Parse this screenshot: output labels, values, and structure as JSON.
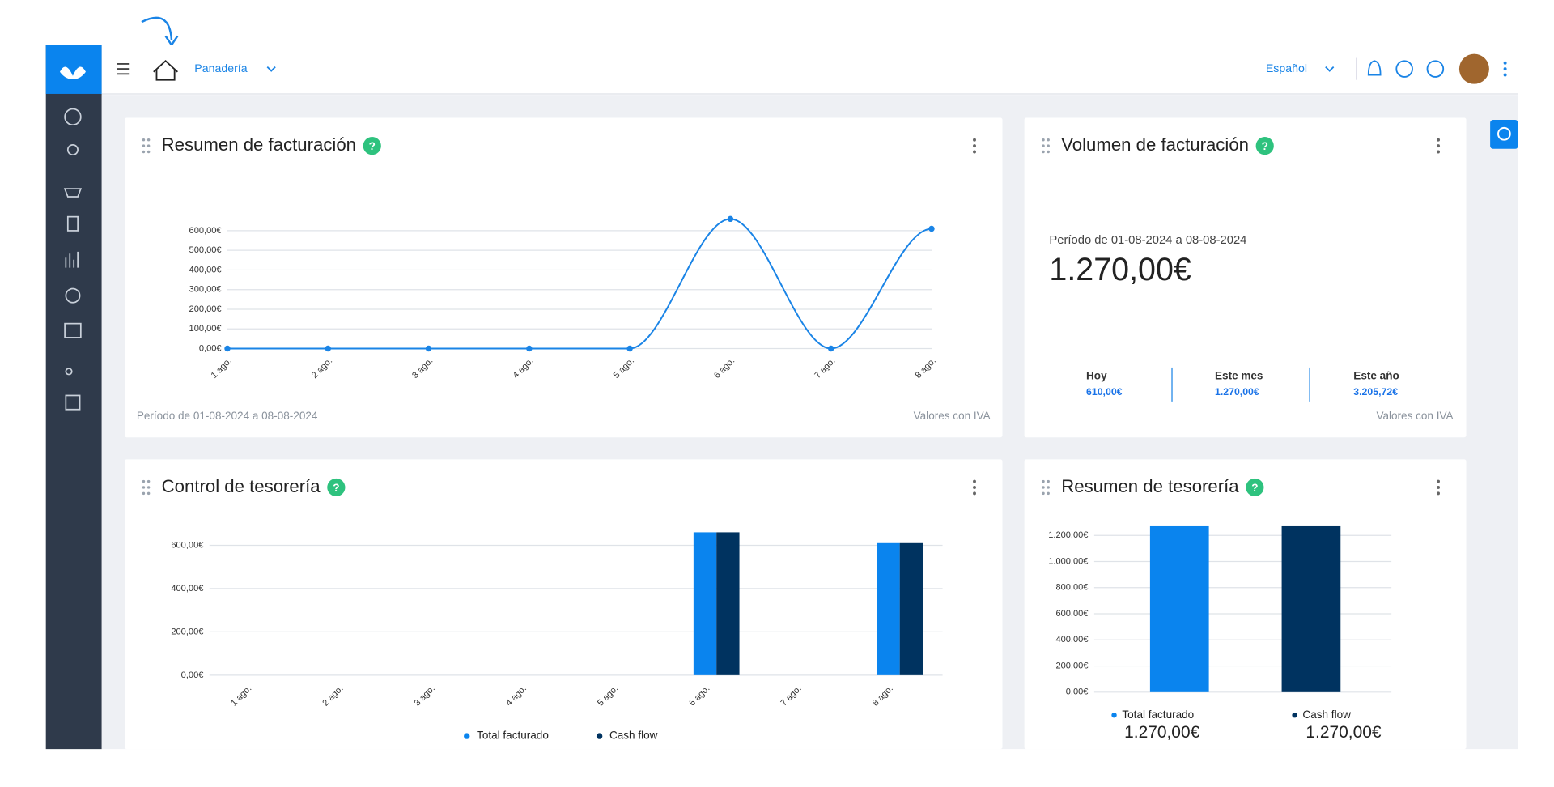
{
  "header": {
    "business": "Panadería",
    "language": "Español"
  },
  "widgets": [
    {
      "title": "Resumen de facturación",
      "footer_left": "Período de 01-08-2024 a 08-08-2024",
      "footer_right": "Valores con IVA",
      "chart": {
        "type": "line",
        "color": "#1a84e6",
        "categories": [
          "1 ago.",
          "2 ago.",
          "3 ago.",
          "4 ago.",
          "5 ago.",
          "6 ago.",
          "7 ago.",
          "8 ago."
        ],
        "values": [
          0,
          0,
          0,
          0,
          0,
          660,
          0,
          610
        ],
        "ylim": [
          0,
          700
        ],
        "yticks": [
          {
            "value": 0,
            "label": "0,00€"
          },
          {
            "value": 100,
            "label": "100,00€"
          },
          {
            "value": 200,
            "label": "200,00€"
          },
          {
            "value": 300,
            "label": "300,00€"
          },
          {
            "value": 400,
            "label": "400,00€"
          },
          {
            "value": 500,
            "label": "500,00€"
          },
          {
            "value": 600,
            "label": "600,00€"
          }
        ],
        "grid": true
      }
    },
    {
      "title": "Volumen de facturación",
      "period": "Período de 01-08-2024 a 08-08-2024",
      "total": "1.270,00€",
      "footer_right": "Valores con IVA",
      "stats": [
        {
          "label": "Hoy",
          "value": "610,00€"
        },
        {
          "label": "Este mes",
          "value": "1.270,00€"
        },
        {
          "label": "Este año",
          "value": "3.205,72€"
        }
      ]
    },
    {
      "title": "Control de tesorería",
      "chart": {
        "type": "bar",
        "categories": [
          "1 ago.",
          "2 ago.",
          "3 ago.",
          "4 ago.",
          "5 ago.",
          "6 ago.",
          "7 ago.",
          "8 ago."
        ],
        "ylim": [
          0,
          700
        ],
        "yticks": [
          {
            "value": 0,
            "label": "0,00€"
          },
          {
            "value": 200,
            "label": "200,00€"
          },
          {
            "value": 400,
            "label": "400,00€"
          },
          {
            "value": 600,
            "label": "600,00€"
          }
        ],
        "grid": true,
        "series": [
          {
            "name": "Total facturado",
            "color": "#0a84ee",
            "values": [
              0,
              0,
              0,
              0,
              0,
              660,
              0,
              610
            ]
          },
          {
            "name": "Cash flow",
            "color": "#003360",
            "values": [
              0,
              0,
              0,
              0,
              0,
              660,
              0,
              610
            ]
          }
        ]
      }
    },
    {
      "title": "Resumen de tesorería",
      "chart": {
        "type": "bar",
        "ylim": [
          0,
          1300
        ],
        "yticks": [
          {
            "value": 0,
            "label": "0,00€"
          },
          {
            "value": 200,
            "label": "200,00€"
          },
          {
            "value": 400,
            "label": "400,00€"
          },
          {
            "value": 600,
            "label": "600,00€"
          },
          {
            "value": 800,
            "label": "800,00€"
          },
          {
            "value": 1000,
            "label": "1.000,00€"
          },
          {
            "value": 1200,
            "label": "1.200,00€"
          }
        ],
        "grid": true,
        "series": [
          {
            "name": "Total facturado",
            "color": "#0a84ee",
            "values": [
              1270
            ],
            "value_labels": [
              "1.270,00€"
            ]
          },
          {
            "name": "Cash flow",
            "color": "#003360",
            "values": [
              1270
            ],
            "value_labels": [
              "1.270,00€"
            ]
          }
        ]
      }
    }
  ]
}
